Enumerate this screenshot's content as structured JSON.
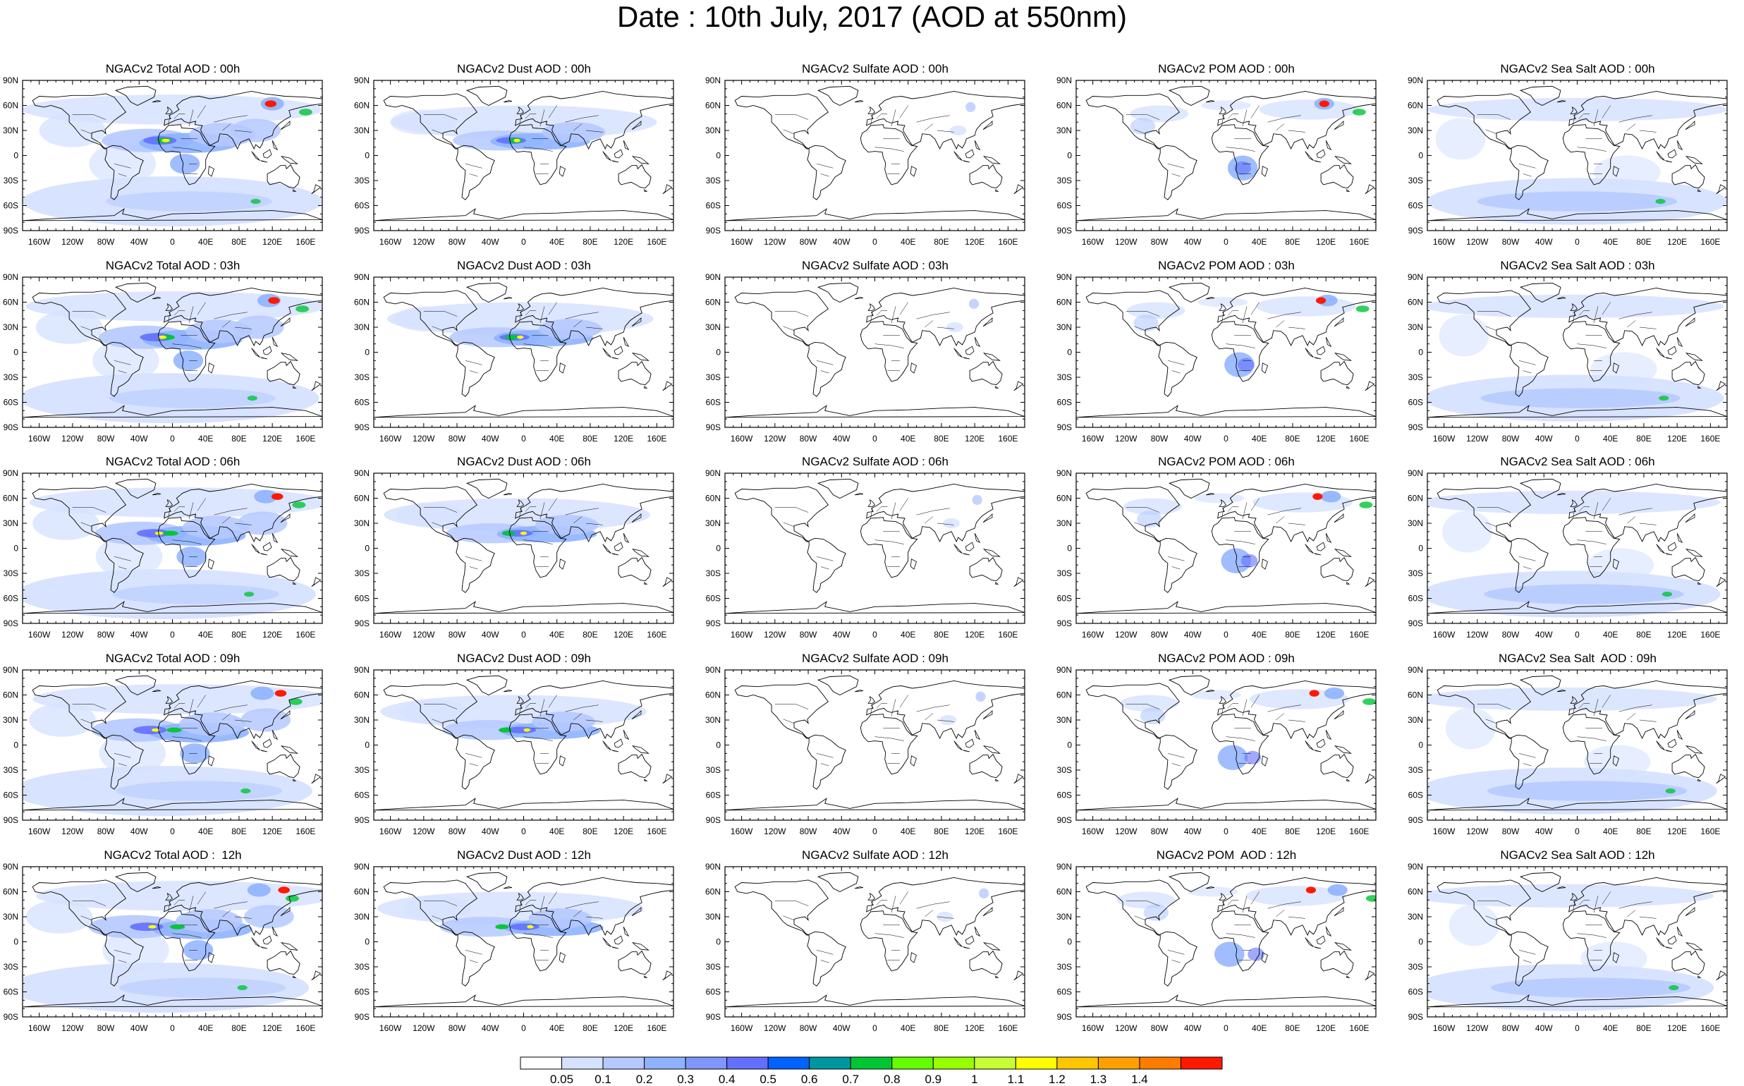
{
  "title": "Date : 10th July, 2017 (AOD at 550nm)",
  "map_axes": {
    "lat_labels": [
      "90N",
      "60N",
      "30N",
      "0",
      "30S",
      "60S",
      "90S"
    ],
    "lon_labels": [
      "160W",
      "120W",
      "80W",
      "40W",
      "0",
      "40E",
      "80E",
      "120E",
      "160E"
    ],
    "lat_values": [
      90,
      60,
      30,
      0,
      -30,
      -60,
      -90
    ],
    "lon_values": [
      -160,
      -120,
      -80,
      -40,
      0,
      40,
      80,
      120,
      160
    ]
  },
  "panels": [
    [
      "NGACv2 Total AOD : 00h",
      "NGACv2 Dust AOD : 00h",
      "NGACv2 Sulfate AOD : 00h",
      "NGACv2 POM AOD : 00h",
      "NGACv2 Sea Salt AOD : 00h"
    ],
    [
      "NGACv2 Total AOD : 03h",
      "NGACv2 Dust AOD : 03h",
      "NGACv2 Sulfate AOD : 03h",
      "NGACv2 POM AOD : 03h",
      "NGACv2 Sea Salt AOD : 03h"
    ],
    [
      "NGACv2 Total AOD : 06h",
      "NGACv2 Dust AOD : 06h",
      "NGACv2 Sulfate AOD : 06h",
      "NGACv2 POM AOD : 06h",
      "NGACv2 Sea Salt AOD : 06h"
    ],
    [
      "NGACv2 Total AOD : 09h",
      "NGACv2 Dust AOD : 09h",
      "NGACv2 Sulfate AOD : 09h",
      "NGACv2 POM AOD : 09h",
      "NGACv2 Sea Salt  AOD : 09h"
    ],
    [
      "NGACv2 Total AOD :  12h",
      "NGACv2 Dust AOD : 12h",
      "NGACv2 Sulfate AOD : 12h",
      "NGACv2 POM  AOD : 12h",
      "NGACv2 Sea Salt AOD : 12h"
    ]
  ],
  "colorbar": {
    "labels": [
      "0.05",
      "0.1",
      "0.2",
      "0.3",
      "0.4",
      "0.5",
      "0.6",
      "0.7",
      "0.8",
      "0.9",
      "1",
      "1.1",
      "1.2",
      "1.3",
      "1.4"
    ],
    "colors": [
      "#ffffff",
      "#d6e2ff",
      "#b5c9ff",
      "#8eb2ff",
      "#7f96ff",
      "#6370ff",
      "#0063ff",
      "#00969f",
      "#00c633",
      "#63ff00",
      "#96ff00",
      "#c6ff33",
      "#ffff00",
      "#ffc600",
      "#ffa000",
      "#ff7c00",
      "#ff1900"
    ]
  },
  "colors": {
    "ocean_haze": "#d6e2ff",
    "moderate": "#b5c9ff",
    "strong": "#8eb2ff",
    "heavy": "#6370ff",
    "peak_green": "#00c633",
    "peak_yellow": "#ffff00",
    "peak_red": "#ff1900",
    "coastline": "#000000"
  },
  "icons": {
    "map": "world-map-equirectangular"
  }
}
